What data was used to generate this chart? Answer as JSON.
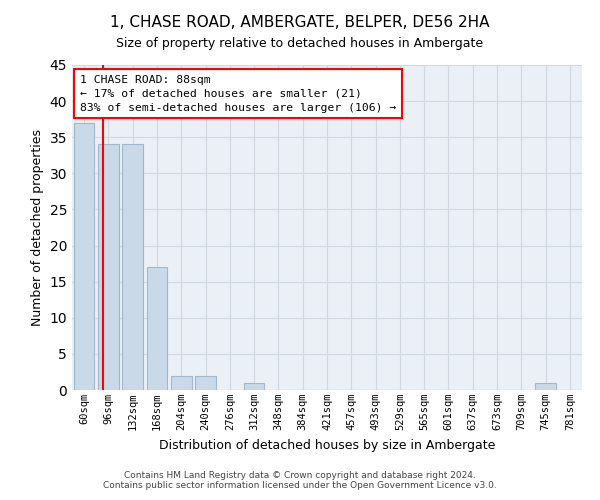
{
  "title": "1, CHASE ROAD, AMBERGATE, BELPER, DE56 2HA",
  "subtitle": "Size of property relative to detached houses in Ambergate",
  "xlabel": "Distribution of detached houses by size in Ambergate",
  "ylabel": "Number of detached properties",
  "categories": [
    "60sqm",
    "96sqm",
    "132sqm",
    "168sqm",
    "204sqm",
    "240sqm",
    "276sqm",
    "312sqm",
    "348sqm",
    "384sqm",
    "421sqm",
    "457sqm",
    "493sqm",
    "529sqm",
    "565sqm",
    "601sqm",
    "637sqm",
    "673sqm",
    "709sqm",
    "745sqm",
    "781sqm"
  ],
  "values": [
    37,
    34,
    34,
    17,
    2,
    2,
    0,
    1,
    0,
    0,
    0,
    0,
    0,
    0,
    0,
    0,
    0,
    0,
    0,
    1,
    0
  ],
  "bar_color": "#c9d9e8",
  "bar_edgecolor": "#a0b8cc",
  "grid_color": "#d0d8e0",
  "background_color": "#eaf0f6",
  "annotation_line_bin": 0.78,
  "annotation_box_text": "1 CHASE ROAD: 88sqm\n← 17% of detached houses are smaller (21)\n83% of semi-detached houses are larger (106) →",
  "ylim": [
    0,
    45
  ],
  "yticks": [
    0,
    5,
    10,
    15,
    20,
    25,
    30,
    35,
    40,
    45
  ],
  "footer_line1": "Contains HM Land Registry data © Crown copyright and database right 2024.",
  "footer_line2": "Contains public sector information licensed under the Open Government Licence v3.0."
}
